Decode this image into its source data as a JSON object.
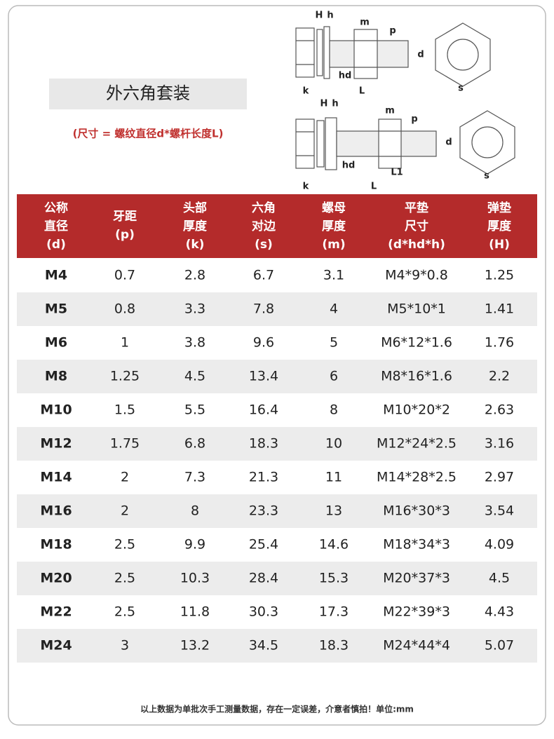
{
  "header": {
    "title": "外六角套装",
    "subtitle": "(尺寸 = 螺纹直径d*螺杆长度L)"
  },
  "diagram1": {
    "labels": [
      "H",
      "h",
      "m",
      "p",
      "d",
      "hd",
      "k",
      "L",
      "s"
    ]
  },
  "diagram2": {
    "labels": [
      "H",
      "h",
      "m",
      "p",
      "d",
      "hd",
      "L1",
      "k",
      "L",
      "s"
    ]
  },
  "table": {
    "header": [
      [
        "公称",
        "直径",
        "(d)"
      ],
      [
        "牙距",
        "(p)"
      ],
      [
        "头部",
        "厚度",
        "(k)"
      ],
      [
        "六角",
        "对边",
        "(s)"
      ],
      [
        "螺母",
        "厚度",
        "(m)"
      ],
      [
        "平垫",
        "尺寸",
        "(d*hd*h)"
      ],
      [
        "弹垫",
        "厚度",
        "(H)"
      ]
    ],
    "rows": [
      [
        "M4",
        "0.7",
        "2.8",
        "6.7",
        "3.1",
        "M4*9*0.8",
        "1.25"
      ],
      [
        "M5",
        "0.8",
        "3.3",
        "7.8",
        "4",
        "M5*10*1",
        "1.41"
      ],
      [
        "M6",
        "1",
        "3.8",
        "9.6",
        "5",
        "M6*12*1.6",
        "1.76"
      ],
      [
        "M8",
        "1.25",
        "4.5",
        "13.4",
        "6",
        "M8*16*1.6",
        "2.2"
      ],
      [
        "M10",
        "1.5",
        "5.5",
        "16.4",
        "8",
        "M10*20*2",
        "2.63"
      ],
      [
        "M12",
        "1.75",
        "6.8",
        "18.3",
        "10",
        "M12*24*2.5",
        "3.16"
      ],
      [
        "M14",
        "2",
        "7.3",
        "21.3",
        "11",
        "M14*28*2.5",
        "2.97"
      ],
      [
        "M16",
        "2",
        "8",
        "23.3",
        "13",
        "M16*30*3",
        "3.54"
      ],
      [
        "M18",
        "2.5",
        "9.9",
        "25.4",
        "14.6",
        "M18*34*3",
        "4.09"
      ],
      [
        "M20",
        "2.5",
        "10.3",
        "28.4",
        "15.3",
        "M20*37*3",
        "4.5"
      ],
      [
        "M22",
        "2.5",
        "11.8",
        "30.3",
        "17.3",
        "M22*39*3",
        "4.43"
      ],
      [
        "M24",
        "3",
        "13.2",
        "34.5",
        "18.3",
        "M24*44*4",
        "5.07"
      ]
    ]
  },
  "footer": {
    "note": "以上数据为单批次手工测量数据，存在一定误差，介意者慎拍！单位:mm"
  }
}
